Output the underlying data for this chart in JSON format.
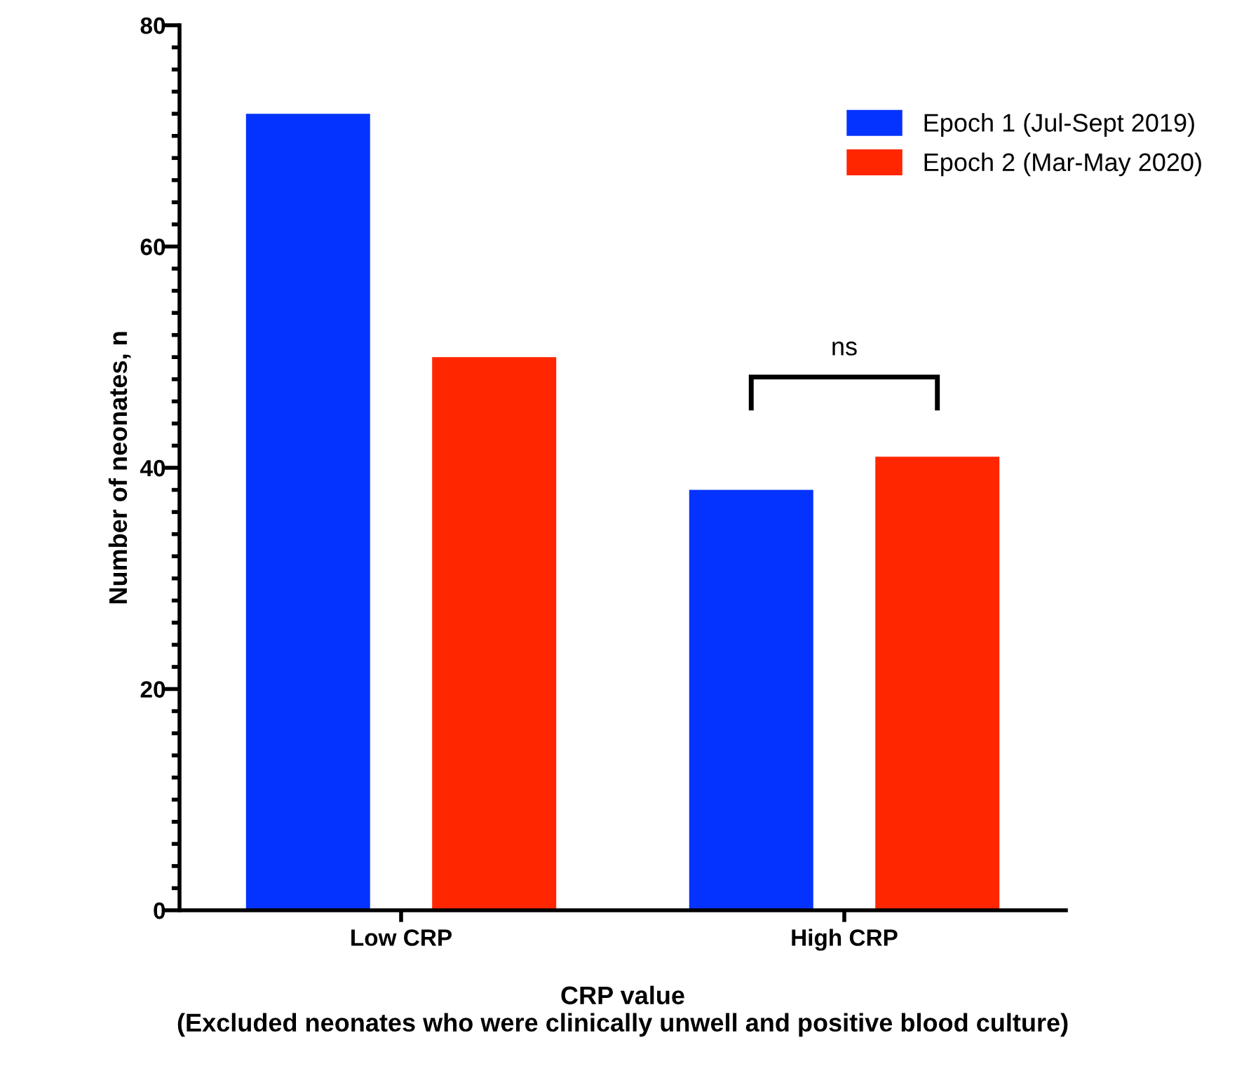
{
  "chart_data": {
    "type": "bar",
    "xlabel": "CRP value\n(Excluded neonates who were clinically unwell and positive blood culture)",
    "ylabel": "Number of neonates, n",
    "categories": [
      "Low CRP",
      "High CRP"
    ],
    "series": [
      {
        "name": "Epoch 1 (Jul-Sept 2019)",
        "color": "#0433ff",
        "values": [
          72,
          38
        ]
      },
      {
        "name": "Epoch 2 (Mar-May 2020)",
        "color": "#ff2600",
        "values": [
          50,
          41
        ]
      }
    ],
    "ylim": [
      0,
      80
    ],
    "yticks": [
      0,
      {
        "value": 2,
        "label": null
      },
      {
        "value": 4,
        "label": null
      },
      {
        "value": 6,
        "label": null
      },
      {
        "value": 8,
        "label": null
      },
      {
        "value": 10,
        "label": null
      },
      {
        "value": 12,
        "label": null
      },
      {
        "value": 14,
        "label": null
      },
      {
        "value": 16,
        "label": null
      },
      {
        "value": 18,
        "label": null
      },
      20,
      {
        "value": 22,
        "label": null
      },
      {
        "value": 24,
        "label": null
      },
      {
        "value": 26,
        "label": null
      },
      {
        "value": 28,
        "label": null
      },
      {
        "value": 30,
        "label": null
      },
      {
        "value": 32,
        "label": null
      },
      {
        "value": 34,
        "label": null
      },
      {
        "value": 36,
        "label": null
      },
      {
        "value": 38,
        "label": null
      },
      40,
      {
        "value": 42,
        "label": null
      },
      {
        "value": 44,
        "label": null
      },
      {
        "value": 46,
        "label": null
      },
      {
        "value": 48,
        "label": null
      },
      {
        "value": 50,
        "label": null
      },
      {
        "value": 52,
        "label": null
      },
      {
        "value": 54,
        "label": null
      },
      {
        "value": 56,
        "label": null
      },
      {
        "value": 58,
        "label": null
      },
      60,
      {
        "value": 62,
        "label": null
      },
      {
        "value": 64,
        "label": null
      },
      {
        "value": 66,
        "label": null
      },
      {
        "value": 68,
        "label": null
      },
      {
        "value": 70,
        "label": null
      },
      {
        "value": 72,
        "label": null
      },
      {
        "value": 74,
        "label": null
      },
      {
        "value": 76,
        "label": null
      },
      {
        "value": 78,
        "label": null
      },
      80
    ],
    "annotations": [
      "ns"
    ],
    "grid": false,
    "legend": "top right"
  }
}
